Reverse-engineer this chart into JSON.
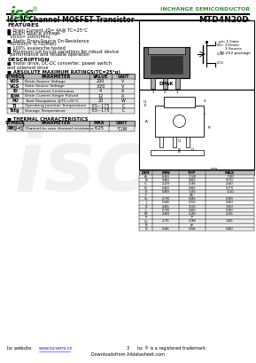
{
  "title_left": "Isc N-Channel MOSFET Transistor",
  "title_right": "MTD4N20D",
  "company": "INCHANGE SEMICONDUCTOR",
  "logo_text": "isc",
  "bg_color": "#ffffff",
  "green_color": "#2e8b2e",
  "features_title": "FEATURES",
  "features": [
    [
      "bold",
      "Drain"
    ],
    [
      "normal",
      " Current -I"
    ],
    [
      "sub",
      "D"
    ],
    [
      "normal",
      "= 4A@ T"
    ],
    [
      "sub",
      "C"
    ],
    [
      "normal",
      "=25°C"
    ],
    [
      "bold",
      "Drain"
    ],
    [
      "normal",
      " Source Voltage-"
    ],
    [
      "normal",
      "  V"
    ],
    [
      "sub",
      "DSS"
    ],
    [
      "normal",
      "= 200V(Min)"
    ],
    [
      "bold",
      "Static"
    ],
    [
      "normal",
      " Drain-Source On-Resistance"
    ],
    [
      "normal",
      "  R"
    ],
    [
      "sub",
      "DS(on)"
    ],
    [
      "normal",
      "= 0.7Ω(Max)"
    ],
    [
      "bold",
      "100%"
    ],
    [
      "normal",
      " avalanche tested"
    ],
    [
      "bold",
      "Minimum"
    ],
    [
      "normal",
      " Lot-to-Lot variations for robust device"
    ],
    [
      "normal",
      "  performance and reliable operation"
    ]
  ],
  "features_lines": [
    "■ Drain Current -ID= 4A@ TC=25°C",
    "■ Drain Source Voltage-",
    "  VDSS= 200V(Min)",
    "■ Static Drain-Source On-Resistance",
    "  RDS(on)= 0.7Ω(Max)",
    "■ 100% avalanche tested",
    "■ Minimum Lot-to-Lot variations for robust device",
    "  performance and reliable operation"
  ],
  "desc_title": "DESCRIPTION",
  "desc_lines": [
    "■ motor drive, DC-DC converter, power switch",
    "and solenoid drive"
  ],
  "abs_max_title": "■ ABSOLUTE MAXIMUM RATINGS(TC=25°g)",
  "table1_headers": [
    "SYMBOL",
    "PARAMETER",
    "VALUE",
    "UNIT"
  ],
  "table1_rows": [
    [
      "VDS",
      "Drain-Source Voltage",
      "200",
      "V"
    ],
    [
      "VGS",
      "Gate-Source Voltage",
      "±20",
      "V"
    ],
    [
      "ID",
      "Drain Current-Continuous",
      "4",
      "A"
    ],
    [
      "IDM",
      "Drain Current-Single Pulsed",
      "12",
      "A"
    ],
    [
      "PD",
      "Total Dissipation @TC=25°C",
      "20",
      "W"
    ],
    [
      "TJ",
      "Operating Junction Temperature",
      "-55~175",
      "C"
    ],
    [
      "Tstg",
      "Storage Temperature",
      "-55~175",
      "C"
    ]
  ],
  "thermal_title": "■ THERMAL CHARACTERISTICS",
  "table2_headers": [
    "SYMBOL",
    "PARAMETER",
    "MAX",
    "UNIT"
  ],
  "table2_rows": [
    [
      "Rθ(j-c)",
      "Channel-to-case thermal resistance",
      "6.25",
      "°C/W"
    ]
  ],
  "dim_headers": [
    "DIM",
    "MIN",
    "TYP",
    "MAX"
  ],
  "dim_rows": [
    [
      "A",
      "6.60",
      "7.18",
      "7.30"
    ],
    [
      "B",
      "9.80",
      "9.65",
      "9.70"
    ],
    [
      "C",
      "2.29",
      "2.35",
      "2.40"
    ],
    [
      "D",
      "0.60",
      "0.65",
      "0.73"
    ],
    [
      "E",
      "0.89",
      "1.05",
      "1.10"
    ],
    [
      "F",
      "",
      "45°",
      ""
    ],
    [
      "G",
      "0.78",
      "0.85",
      "0.90"
    ],
    [
      "J",
      "0.48",
      "0.55",
      "0.60"
    ],
    [
      "K",
      "2.65",
      "3.15",
      "3.50"
    ],
    [
      "L",
      "0.78",
      "0.65",
      "0.90"
    ],
    [
      "M",
      "2.89",
      "2.26",
      "2.25"
    ],
    [
      "P",
      "",
      "7°",
      ""
    ],
    [
      "Q",
      "2.75",
      "2.98",
      "3.05"
    ],
    [
      "R",
      "",
      "8°",
      ""
    ],
    [
      "S",
      "0.46",
      "0.56",
      "0.60"
    ]
  ],
  "website_text": "Isc website:  ",
  "website_url": "www.iscsemi.cn",
  "footer_note": "Isc ® is a registered trademark",
  "footer_bottom": "Downloadsfrom Alldatasheet.com",
  "dpak_label": "DPAK",
  "package_label": "TO-252 package",
  "pin_label1": "pin 1:Gate",
  "pin_label2": "     2:Drain",
  "pin_label3": "     3:Source",
  "number3": "3",
  "mm_label": "mm"
}
